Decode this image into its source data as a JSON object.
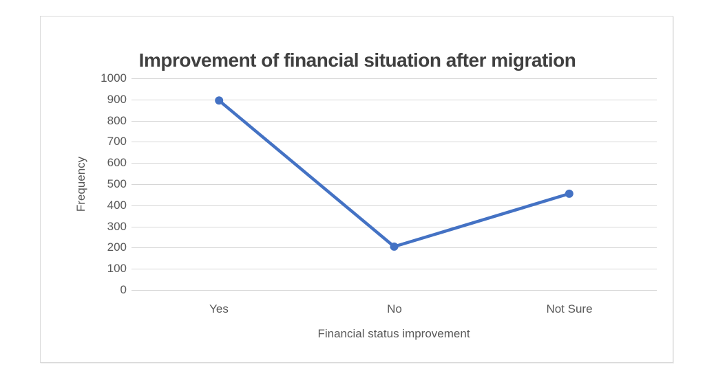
{
  "chart_data": {
    "type": "line",
    "title": "Improvement of financial situation after migration",
    "xlabel": "Financial status improvement",
    "ylabel": "Frequency",
    "categories": [
      "Yes",
      "No",
      "Not Sure"
    ],
    "series": [
      {
        "name": "Frequency",
        "values": [
          895,
          205,
          455
        ]
      }
    ],
    "ylim": [
      0,
      1000
    ],
    "yticks": [
      0,
      100,
      200,
      300,
      400,
      500,
      600,
      700,
      800,
      900,
      1000
    ],
    "grid": true,
    "legend_position": "none",
    "marker": "circle",
    "colors": {
      "line": "#4472C4",
      "marker": "#4472C4",
      "gridline": "#D6D6D6",
      "title_text": "#404040",
      "axis_text": "#595959",
      "chart_border": "#D9D9D9",
      "background": "#FFFFFF"
    }
  }
}
